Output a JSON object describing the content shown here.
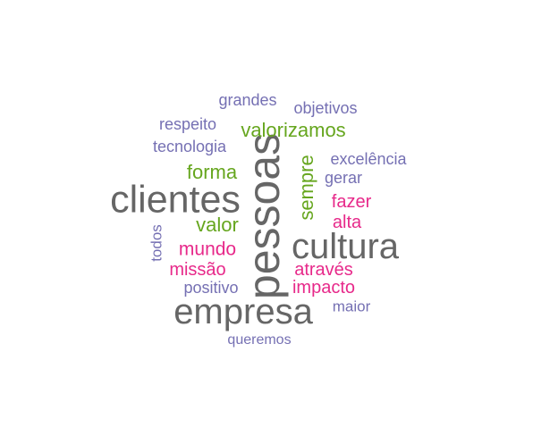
{
  "colors": {
    "gray": "#666666",
    "green": "#66a61e",
    "pink": "#e7298a",
    "purple": "#7570b3"
  },
  "words": [
    {
      "id": "pessoas",
      "text": "pessoas",
      "color": "gray",
      "rotated": true
    },
    {
      "id": "clientes",
      "text": "clientes",
      "color": "gray",
      "rotated": false
    },
    {
      "id": "cultura",
      "text": "cultura",
      "color": "gray",
      "rotated": false
    },
    {
      "id": "empresa",
      "text": "empresa",
      "color": "gray",
      "rotated": false
    },
    {
      "id": "valorizamos",
      "text": "valorizamos",
      "color": "green",
      "rotated": false
    },
    {
      "id": "forma",
      "text": "forma",
      "color": "green",
      "rotated": false
    },
    {
      "id": "valor",
      "text": "valor",
      "color": "green",
      "rotated": false
    },
    {
      "id": "sempre",
      "text": "sempre",
      "color": "green",
      "rotated": true
    },
    {
      "id": "mundo",
      "text": "mundo",
      "color": "pink",
      "rotated": false
    },
    {
      "id": "missao",
      "text": "missão",
      "color": "pink",
      "rotated": false
    },
    {
      "id": "fazer",
      "text": "fazer",
      "color": "pink",
      "rotated": false
    },
    {
      "id": "alta",
      "text": "alta",
      "color": "pink",
      "rotated": false
    },
    {
      "id": "atraves",
      "text": "através",
      "color": "pink",
      "rotated": false
    },
    {
      "id": "impacto",
      "text": "impacto",
      "color": "pink",
      "rotated": false
    },
    {
      "id": "grandes",
      "text": "grandes",
      "color": "purple",
      "rotated": false
    },
    {
      "id": "objetivos",
      "text": "objetivos",
      "color": "purple",
      "rotated": false
    },
    {
      "id": "respeito",
      "text": "respeito",
      "color": "purple",
      "rotated": false
    },
    {
      "id": "tecnologia",
      "text": "tecnologia",
      "color": "purple",
      "rotated": false
    },
    {
      "id": "excelencia",
      "text": "excelência",
      "color": "purple",
      "rotated": false
    },
    {
      "id": "gerar",
      "text": "gerar",
      "color": "purple",
      "rotated": false
    },
    {
      "id": "todos",
      "text": "todos",
      "color": "purple",
      "rotated": true
    },
    {
      "id": "positivo",
      "text": "positivo",
      "color": "purple",
      "rotated": false
    },
    {
      "id": "maior",
      "text": "maior",
      "color": "purple",
      "rotated": false
    },
    {
      "id": "queremos",
      "text": "queremos",
      "color": "purple",
      "rotated": false
    }
  ]
}
